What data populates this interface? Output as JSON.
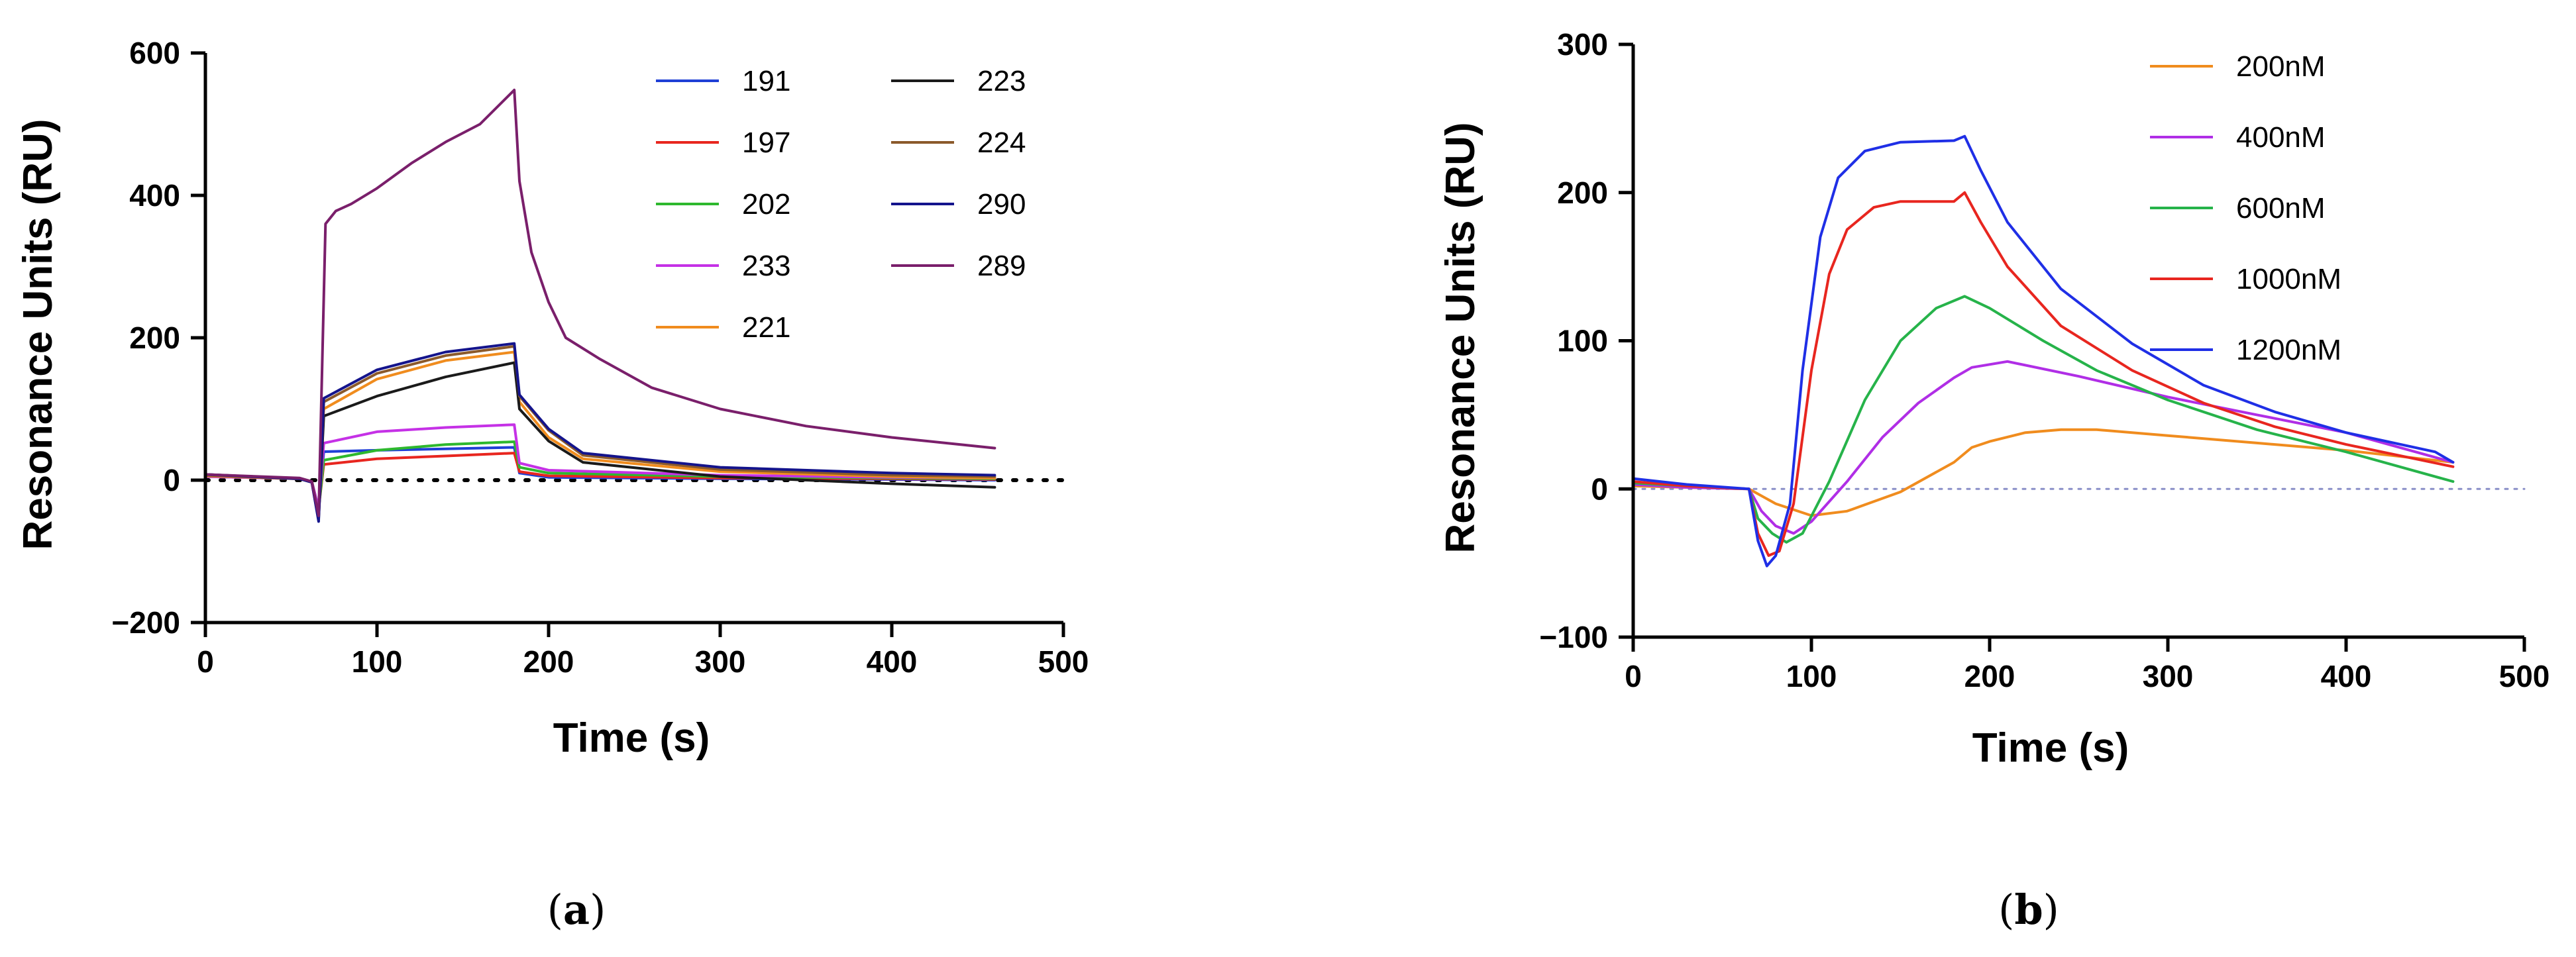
{
  "chart_data": [
    {
      "type": "line",
      "panel_label": "a",
      "xlabel": "Time (s)",
      "ylabel": "Resonance Units (RU)",
      "xlim": [
        0,
        500
      ],
      "ylim": [
        -200,
        600
      ],
      "xticks": [
        "0",
        "100",
        "200",
        "300",
        "400",
        "500"
      ],
      "yticks": [
        "−200",
        "0",
        "200",
        "400",
        "600"
      ],
      "xtick_values": [
        0,
        100,
        200,
        300,
        400,
        500
      ],
      "ytick_values": [
        -200,
        0,
        200,
        400,
        600
      ],
      "legend_position": "top-right",
      "baseline": {
        "y": 0,
        "style": "dotted",
        "color": "#000000"
      },
      "series": [
        {
          "name": "191",
          "color": "#1f3fd6",
          "points": [
            [
              0,
              6
            ],
            [
              55,
              2
            ],
            [
              62,
              -2
            ],
            [
              66,
              -40
            ],
            [
              69,
              40
            ],
            [
              100,
              42
            ],
            [
              140,
              44
            ],
            [
              180,
              46
            ],
            [
              183,
              10
            ],
            [
              200,
              4
            ],
            [
              300,
              2
            ],
            [
              400,
              1
            ],
            [
              460,
              0
            ]
          ]
        },
        {
          "name": "197",
          "color": "#e8261f",
          "points": [
            [
              0,
              5
            ],
            [
              55,
              2
            ],
            [
              62,
              -2
            ],
            [
              66,
              -40
            ],
            [
              69,
              22
            ],
            [
              100,
              30
            ],
            [
              140,
              34
            ],
            [
              180,
              38
            ],
            [
              183,
              12
            ],
            [
              200,
              6
            ],
            [
              300,
              3
            ],
            [
              400,
              2
            ],
            [
              460,
              1
            ]
          ]
        },
        {
          "name": "202",
          "color": "#2eb82e",
          "points": [
            [
              0,
              5
            ],
            [
              55,
              2
            ],
            [
              62,
              -2
            ],
            [
              66,
              -40
            ],
            [
              69,
              28
            ],
            [
              100,
              42
            ],
            [
              140,
              50
            ],
            [
              180,
              54
            ],
            [
              183,
              18
            ],
            [
              200,
              10
            ],
            [
              300,
              5
            ],
            [
              400,
              3
            ],
            [
              460,
              2
            ]
          ]
        },
        {
          "name": "233",
          "color": "#c531e6",
          "points": [
            [
              0,
              5
            ],
            [
              55,
              2
            ],
            [
              62,
              -2
            ],
            [
              66,
              -40
            ],
            [
              69,
              52
            ],
            [
              100,
              68
            ],
            [
              140,
              74
            ],
            [
              180,
              78
            ],
            [
              183,
              24
            ],
            [
              200,
              14
            ],
            [
              300,
              7
            ],
            [
              400,
              4
            ],
            [
              460,
              3
            ]
          ]
        },
        {
          "name": "221",
          "color": "#f08c1e",
          "points": [
            [
              0,
              6
            ],
            [
              55,
              2
            ],
            [
              62,
              -2
            ],
            [
              66,
              -50
            ],
            [
              69,
              100
            ],
            [
              100,
              142
            ],
            [
              140,
              168
            ],
            [
              180,
              180
            ],
            [
              183,
              110
            ],
            [
              200,
              60
            ],
            [
              220,
              30
            ],
            [
              300,
              12
            ],
            [
              400,
              5
            ],
            [
              460,
              3
            ]
          ]
        },
        {
          "name": "223",
          "color": "#1a1a1a",
          "points": [
            [
              0,
              8
            ],
            [
              55,
              2
            ],
            [
              62,
              -3
            ],
            [
              66,
              -55
            ],
            [
              69,
              90
            ],
            [
              100,
              118
            ],
            [
              140,
              145
            ],
            [
              180,
              165
            ],
            [
              183,
              100
            ],
            [
              200,
              55
            ],
            [
              220,
              25
            ],
            [
              300,
              5
            ],
            [
              400,
              -5
            ],
            [
              460,
              -10
            ]
          ]
        },
        {
          "name": "224",
          "color": "#8b5a2b",
          "points": [
            [
              0,
              7
            ],
            [
              55,
              2
            ],
            [
              62,
              -2
            ],
            [
              66,
              -50
            ],
            [
              69,
              110
            ],
            [
              100,
              150
            ],
            [
              140,
              175
            ],
            [
              180,
              188
            ],
            [
              183,
              118
            ],
            [
              200,
              70
            ],
            [
              220,
              35
            ],
            [
              300,
              15
            ],
            [
              400,
              7
            ],
            [
              460,
              5
            ]
          ]
        },
        {
          "name": "290",
          "color": "#14148c",
          "points": [
            [
              0,
              8
            ],
            [
              55,
              2
            ],
            [
              62,
              -3
            ],
            [
              66,
              -58
            ],
            [
              69,
              115
            ],
            [
              100,
              155
            ],
            [
              140,
              180
            ],
            [
              180,
              192
            ],
            [
              183,
              120
            ],
            [
              200,
              72
            ],
            [
              220,
              38
            ],
            [
              300,
              18
            ],
            [
              400,
              10
            ],
            [
              460,
              7
            ]
          ]
        },
        {
          "name": "289",
          "color": "#7a1f6b",
          "points": [
            [
              0,
              8
            ],
            [
              55,
              3
            ],
            [
              62,
              -2
            ],
            [
              66,
              -50
            ],
            [
              70,
              360
            ],
            [
              76,
              378
            ],
            [
              85,
              388
            ],
            [
              100,
              410
            ],
            [
              120,
              445
            ],
            [
              140,
              475
            ],
            [
              160,
              500
            ],
            [
              180,
              548
            ],
            [
              183,
              420
            ],
            [
              190,
              320
            ],
            [
              200,
              250
            ],
            [
              210,
              200
            ],
            [
              230,
              170
            ],
            [
              260,
              130
            ],
            [
              300,
              100
            ],
            [
              350,
              76
            ],
            [
              400,
              60
            ],
            [
              460,
              45
            ]
          ]
        }
      ]
    },
    {
      "type": "line",
      "panel_label": "b",
      "xlabel": "Time (s)",
      "ylabel": "Resonance Units (RU)",
      "xlim": [
        0,
        500
      ],
      "ylim": [
        -100,
        300
      ],
      "xticks": [
        "0",
        "100",
        "200",
        "300",
        "400",
        "500"
      ],
      "yticks": [
        "−100",
        "0",
        "100",
        "200",
        "300"
      ],
      "xtick_values": [
        0,
        100,
        200,
        300,
        400,
        500
      ],
      "ytick_values": [
        -100,
        0,
        100,
        200,
        300
      ],
      "legend_position": "top-right",
      "baseline": {
        "y": 0,
        "style": "dotted",
        "color": "#8a8fc8"
      },
      "series": [
        {
          "name": "200nM",
          "color": "#f08c1e",
          "points": [
            [
              0,
              2
            ],
            [
              30,
              1
            ],
            [
              65,
              0
            ],
            [
              80,
              -10
            ],
            [
              100,
              -18
            ],
            [
              120,
              -15
            ],
            [
              150,
              -2
            ],
            [
              180,
              18
            ],
            [
              190,
              28
            ],
            [
              200,
              32
            ],
            [
              220,
              38
            ],
            [
              240,
              40
            ],
            [
              260,
              40
            ],
            [
              300,
              36
            ],
            [
              350,
              31
            ],
            [
              400,
              26
            ],
            [
              460,
              18
            ]
          ]
        },
        {
          "name": "400nM",
          "color": "#b02ee6",
          "points": [
            [
              0,
              3
            ],
            [
              30,
              1
            ],
            [
              65,
              0
            ],
            [
              72,
              -15
            ],
            [
              80,
              -25
            ],
            [
              90,
              -30
            ],
            [
              100,
              -22
            ],
            [
              120,
              5
            ],
            [
              140,
              35
            ],
            [
              160,
              58
            ],
            [
              180,
              75
            ],
            [
              190,
              82
            ],
            [
              210,
              86
            ],
            [
              250,
              76
            ],
            [
              300,
              62
            ],
            [
              350,
              50
            ],
            [
              400,
              38
            ],
            [
              460,
              18
            ]
          ]
        },
        {
          "name": "600nM",
          "color": "#26b34a",
          "points": [
            [
              0,
              4
            ],
            [
              30,
              2
            ],
            [
              65,
              0
            ],
            [
              70,
              -20
            ],
            [
              78,
              -30
            ],
            [
              86,
              -36
            ],
            [
              95,
              -30
            ],
            [
              110,
              5
            ],
            [
              130,
              60
            ],
            [
              150,
              100
            ],
            [
              170,
              122
            ],
            [
              186,
              130
            ],
            [
              200,
              122
            ],
            [
              230,
              100
            ],
            [
              260,
              80
            ],
            [
              300,
              60
            ],
            [
              350,
              40
            ],
            [
              400,
              25
            ],
            [
              460,
              5
            ]
          ]
        },
        {
          "name": "1000nM",
          "color": "#e8261f",
          "points": [
            [
              0,
              5
            ],
            [
              30,
              2
            ],
            [
              65,
              0
            ],
            [
              70,
              -30
            ],
            [
              76,
              -45
            ],
            [
              82,
              -42
            ],
            [
              90,
              -10
            ],
            [
              100,
              80
            ],
            [
              110,
              145
            ],
            [
              120,
              175
            ],
            [
              135,
              190
            ],
            [
              150,
              194
            ],
            [
              180,
              194
            ],
            [
              186,
              200
            ],
            [
              195,
              180
            ],
            [
              210,
              150
            ],
            [
              240,
              110
            ],
            [
              280,
              80
            ],
            [
              320,
              58
            ],
            [
              360,
              42
            ],
            [
              400,
              30
            ],
            [
              460,
              15
            ]
          ]
        },
        {
          "name": "1200nM",
          "color": "#1f2fe6",
          "points": [
            [
              0,
              7
            ],
            [
              30,
              3
            ],
            [
              65,
              0
            ],
            [
              70,
              -35
            ],
            [
              75,
              -52
            ],
            [
              80,
              -45
            ],
            [
              88,
              -10
            ],
            [
              95,
              80
            ],
            [
              105,
              170
            ],
            [
              115,
              210
            ],
            [
              130,
              228
            ],
            [
              150,
              234
            ],
            [
              180,
              235
            ],
            [
              186,
              238
            ],
            [
              195,
              215
            ],
            [
              210,
              180
            ],
            [
              240,
              135
            ],
            [
              280,
              98
            ],
            [
              320,
              70
            ],
            [
              360,
              52
            ],
            [
              400,
              38
            ],
            [
              450,
              25
            ],
            [
              460,
              18
            ]
          ]
        }
      ]
    }
  ],
  "captions": [
    {
      "pre": "(",
      "letter": "a",
      "post": ")"
    },
    {
      "pre": "(",
      "letter": "b",
      "post": ")"
    }
  ]
}
